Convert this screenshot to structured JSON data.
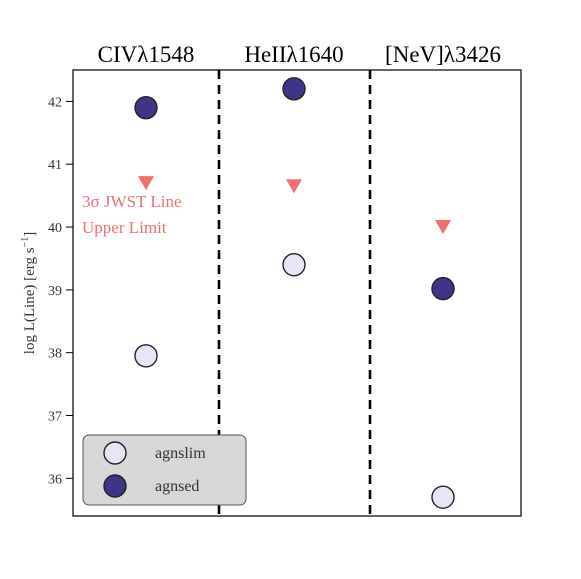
{
  "chart_data": {
    "type": "scatter",
    "panels": [
      "CIVλ1548",
      "HeIIλ1640",
      "[NeV]λ3426"
    ],
    "ylabel": "log L(Line) [erg s",
    "ylabel_sup": "−1",
    "ylabel_close": "]",
    "ylim": [
      35.4,
      42.5
    ],
    "yticks": [
      "36",
      "37",
      "38",
      "39",
      "40",
      "41",
      "42"
    ],
    "grid": false,
    "legend_position": "lower-left",
    "series": [
      {
        "name": "agnslim",
        "color": "#e6e6f8",
        "values": [
          37.95,
          39.4,
          35.7
        ]
      },
      {
        "name": "agnsed",
        "color": "#3f3587",
        "values": [
          41.9,
          42.2,
          39.02
        ]
      },
      {
        "name": "3σ JWST Line Upper Limit",
        "color": "#f07070",
        "values": [
          40.7,
          40.65,
          40.0
        ],
        "marker": "triangle-down"
      }
    ],
    "annotation": {
      "line1": "3σ JWST Line",
      "line2": "Upper Limit",
      "color": "#f07070"
    }
  }
}
